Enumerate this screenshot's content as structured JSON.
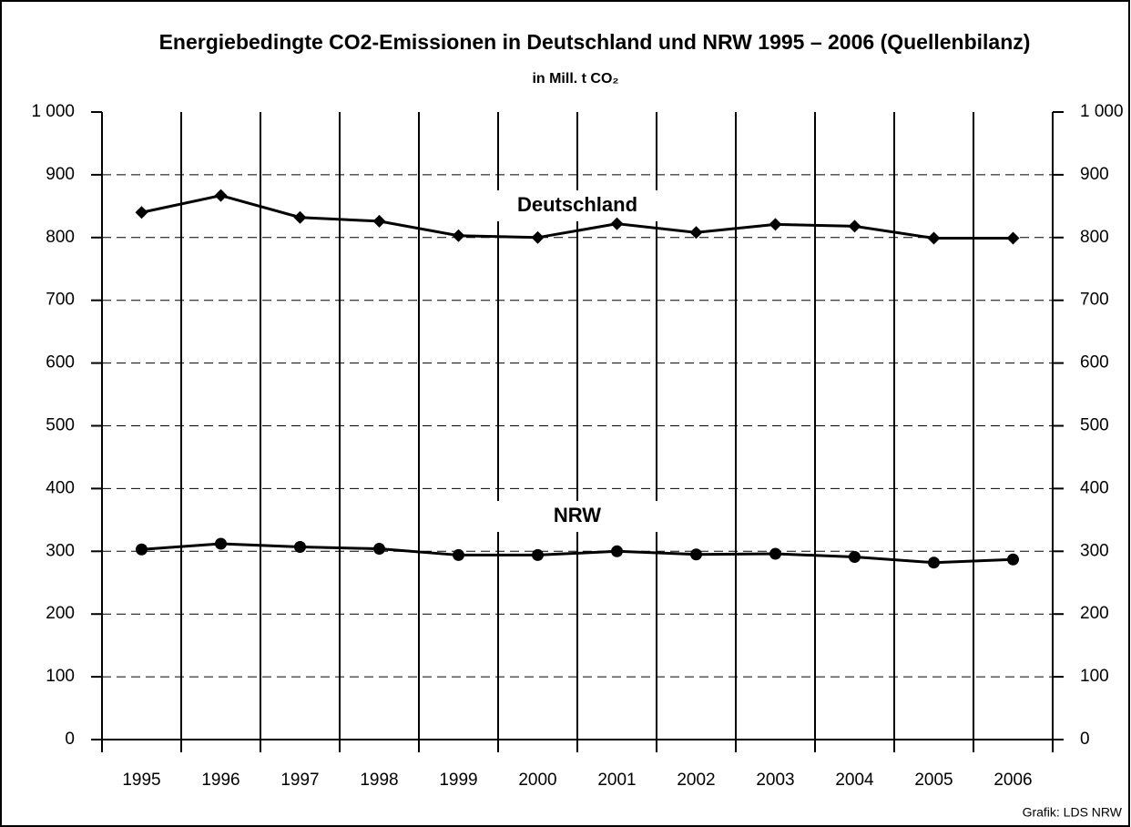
{
  "chart_data": {
    "type": "line",
    "title": "Energiebedingte CO2-Emissionen in Deutschland und NRW 1995 – 2006 (Quellenbilanz)",
    "subtitle": "in Mill. t CO₂",
    "source": "Grafik: LDS NRW",
    "categories": [
      "1995",
      "1996",
      "1997",
      "1998",
      "1999",
      "2000",
      "2001",
      "2002",
      "2003",
      "2004",
      "2005",
      "2006"
    ],
    "series": [
      {
        "name": "Deutschland",
        "color": "#000000",
        "marker": "diamond",
        "values": [
          840,
          867,
          832,
          826,
          803,
          800,
          822,
          808,
          821,
          818,
          799,
          799
        ]
      },
      {
        "name": "NRW",
        "color": "#000000",
        "marker": "circle",
        "values": [
          303,
          312,
          307,
          304,
          294,
          294,
          300,
          295,
          296,
          291,
          282,
          287
        ]
      }
    ],
    "ylim": [
      0,
      1000
    ],
    "yticks": [
      0,
      100,
      200,
      300,
      400,
      500,
      600,
      700,
      800,
      900,
      {
        "value": 1000,
        "label": "1 000"
      }
    ],
    "grid": true
  }
}
